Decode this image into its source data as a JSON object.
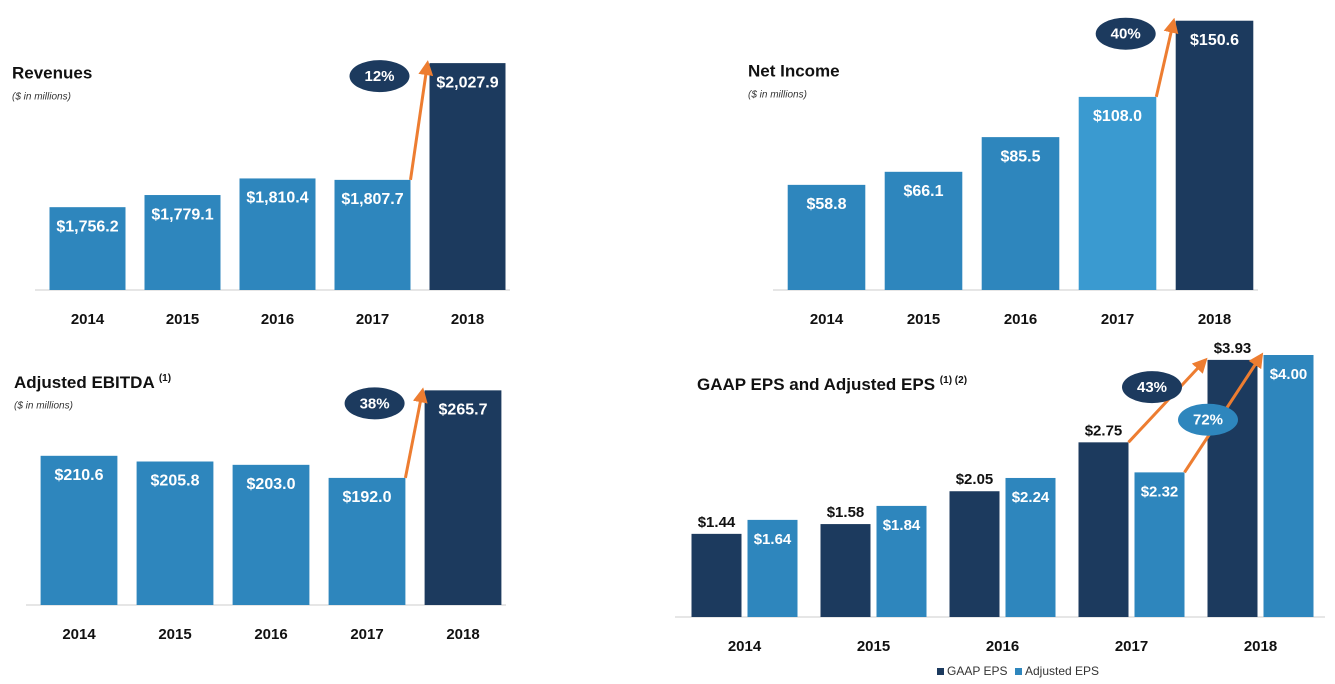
{
  "chart_data": [
    {
      "type": "bar",
      "title": "Revenues",
      "subtitle": "($ in millions)",
      "categories": [
        "2014",
        "2015",
        "2016",
        "2017",
        "2018"
      ],
      "values": [
        1756.2,
        1779.1,
        1810.4,
        1807.7,
        2027.9
      ],
      "value_labels": [
        "$1,756.2",
        "$1,779.1",
        "$1,810.4",
        "$1,807.7",
        "$2,027.9"
      ],
      "colors": [
        "#2e86bd",
        "#2e86bd",
        "#2e86bd",
        "#2e86bd",
        "#1c3a5e"
      ],
      "growth": "12%",
      "ylim": [
        1600,
        2030
      ]
    },
    {
      "type": "bar",
      "title": "Net Income",
      "subtitle": "($ in millions)",
      "categories": [
        "2014",
        "2015",
        "2016",
        "2017",
        "2018"
      ],
      "values": [
        58.8,
        66.1,
        85.5,
        108.0,
        150.6
      ],
      "value_labels": [
        "$58.8",
        "$66.1",
        "$85.5",
        "$108.0",
        "$150.6"
      ],
      "colors": [
        "#2e86bd",
        "#2e86bd",
        "#2e86bd",
        "#3a9ad0",
        "#1c3a5e"
      ],
      "growth": "40%",
      "ylim": [
        0,
        151
      ]
    },
    {
      "type": "bar",
      "title": "Adjusted EBITDA",
      "title_note": "(1)",
      "subtitle": "($ in millions)",
      "categories": [
        "2014",
        "2015",
        "2016",
        "2017",
        "2018"
      ],
      "values": [
        210.6,
        205.8,
        203.0,
        192.0,
        265.7
      ],
      "value_labels": [
        "$210.6",
        "$205.8",
        "$203.0",
        "$192.0",
        "$265.7"
      ],
      "colors": [
        "#2e86bd",
        "#2e86bd",
        "#2e86bd",
        "#2e86bd",
        "#1c3a5e"
      ],
      "growth": "38%",
      "ylim": [
        85,
        266
      ]
    },
    {
      "type": "grouped_bar",
      "title": "GAAP EPS and Adjusted EPS",
      "title_note": "(1) (2)",
      "categories": [
        "2014",
        "2015",
        "2016",
        "2017",
        "2018"
      ],
      "series": [
        {
          "name": "GAAP EPS",
          "color": "#1c3a5e",
          "values": [
            1.44,
            1.58,
            2.05,
            2.75,
            3.93
          ],
          "value_labels": [
            "$1.44",
            "$1.58",
            "$2.05",
            "$2.75",
            "$3.93"
          ],
          "growth": "43%"
        },
        {
          "name": "Adjusted EPS",
          "color": "#2e86bd",
          "values": [
            1.64,
            1.84,
            2.24,
            2.32,
            4.0
          ],
          "value_labels": [
            "$1.64",
            "$1.84",
            "$2.24",
            "$2.32",
            "$4.00"
          ],
          "growth": "72%"
        }
      ],
      "ylim": [
        0.25,
        4.0
      ]
    }
  ]
}
